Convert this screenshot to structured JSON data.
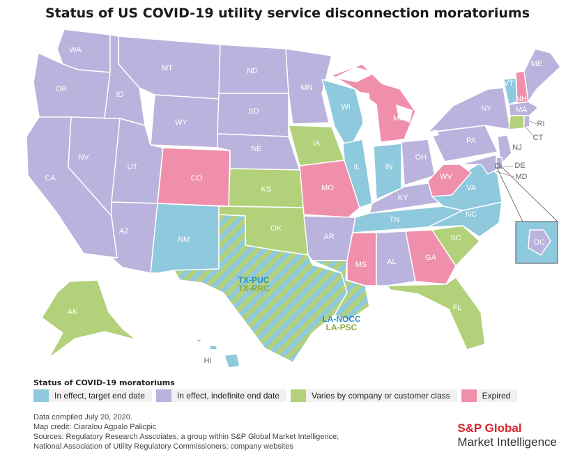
{
  "title": "Status of US COVID-19 utility service disconnection moratoriums",
  "colors": {
    "target": "#8ec9dd",
    "indefinite": "#b9b3dd",
    "varies": "#b2d17a",
    "expired": "#f08fab",
    "border": "#ffffff"
  },
  "states": [
    {
      "id": "WA",
      "status": "indefinite"
    },
    {
      "id": "OR",
      "status": "indefinite"
    },
    {
      "id": "CA",
      "status": "indefinite"
    },
    {
      "id": "NV",
      "status": "indefinite"
    },
    {
      "id": "ID",
      "status": "indefinite"
    },
    {
      "id": "MT",
      "status": "indefinite"
    },
    {
      "id": "WY",
      "status": "indefinite"
    },
    {
      "id": "UT",
      "status": "indefinite"
    },
    {
      "id": "AZ",
      "status": "indefinite"
    },
    {
      "id": "CO",
      "status": "expired"
    },
    {
      "id": "NM",
      "status": "target"
    },
    {
      "id": "ND",
      "status": "indefinite"
    },
    {
      "id": "SD",
      "status": "indefinite"
    },
    {
      "id": "NE",
      "status": "indefinite"
    },
    {
      "id": "KS",
      "status": "varies"
    },
    {
      "id": "OK",
      "status": "varies"
    },
    {
      "id": "TX",
      "status": "striped"
    },
    {
      "id": "MN",
      "status": "indefinite"
    },
    {
      "id": "IA",
      "status": "varies"
    },
    {
      "id": "MO",
      "status": "expired"
    },
    {
      "id": "AR",
      "status": "indefinite"
    },
    {
      "id": "LA",
      "status": "striped"
    },
    {
      "id": "WI",
      "status": "target"
    },
    {
      "id": "IL",
      "status": "target"
    },
    {
      "id": "MI",
      "status": "expired"
    },
    {
      "id": "IN",
      "status": "target"
    },
    {
      "id": "OH",
      "status": "indefinite"
    },
    {
      "id": "KY",
      "status": "indefinite"
    },
    {
      "id": "TN",
      "status": "target"
    },
    {
      "id": "MS",
      "status": "expired"
    },
    {
      "id": "AL",
      "status": "indefinite"
    },
    {
      "id": "GA",
      "status": "expired"
    },
    {
      "id": "FL",
      "status": "varies"
    },
    {
      "id": "SC",
      "status": "varies"
    },
    {
      "id": "NC",
      "status": "target"
    },
    {
      "id": "VA",
      "status": "target"
    },
    {
      "id": "WV",
      "status": "expired"
    },
    {
      "id": "PA",
      "status": "indefinite"
    },
    {
      "id": "NY",
      "status": "indefinite"
    },
    {
      "id": "NJ",
      "status": "indefinite"
    },
    {
      "id": "DE",
      "status": "indefinite"
    },
    {
      "id": "MD",
      "status": "indefinite"
    },
    {
      "id": "VT",
      "status": "target"
    },
    {
      "id": "NH",
      "status": "expired"
    },
    {
      "id": "ME",
      "status": "indefinite"
    },
    {
      "id": "MA",
      "status": "indefinite"
    },
    {
      "id": "CT",
      "status": "varies"
    },
    {
      "id": "RI",
      "status": "indefinite"
    },
    {
      "id": "AK",
      "status": "varies"
    },
    {
      "id": "HI",
      "status": "target"
    },
    {
      "id": "DC",
      "status": "indefinite"
    }
  ],
  "tx_labels": {
    "line1": "TX-PUC",
    "line2": "TX-RRC"
  },
  "la_labels": {
    "line1": "LA-NOCC",
    "line2": "LA-PSC"
  },
  "legend": {
    "title": "Status of COVID-19 moratoriums",
    "items": [
      {
        "label": "In effect, target end date",
        "color": "#8ec9dd"
      },
      {
        "label": "In effect, indefinite end date",
        "color": "#b9b3dd"
      },
      {
        "label": "Varies by company or customer class",
        "color": "#b2d17a"
      },
      {
        "label": "Expired",
        "color": "#f08fab"
      }
    ]
  },
  "footer": {
    "line1": "Data compiled July 20, 2020.",
    "line2": "Map credit: Ciaralou Agpalo Palicpic",
    "line3": "Sources: Regulatory Research Asscoiates, a group within S&P Global Market Intelligence;",
    "line4": "National Association of Utility Regulatory Commissioners; company websites"
  },
  "brand": {
    "top": "S&P Global",
    "bottom": "Market Intelligence"
  }
}
